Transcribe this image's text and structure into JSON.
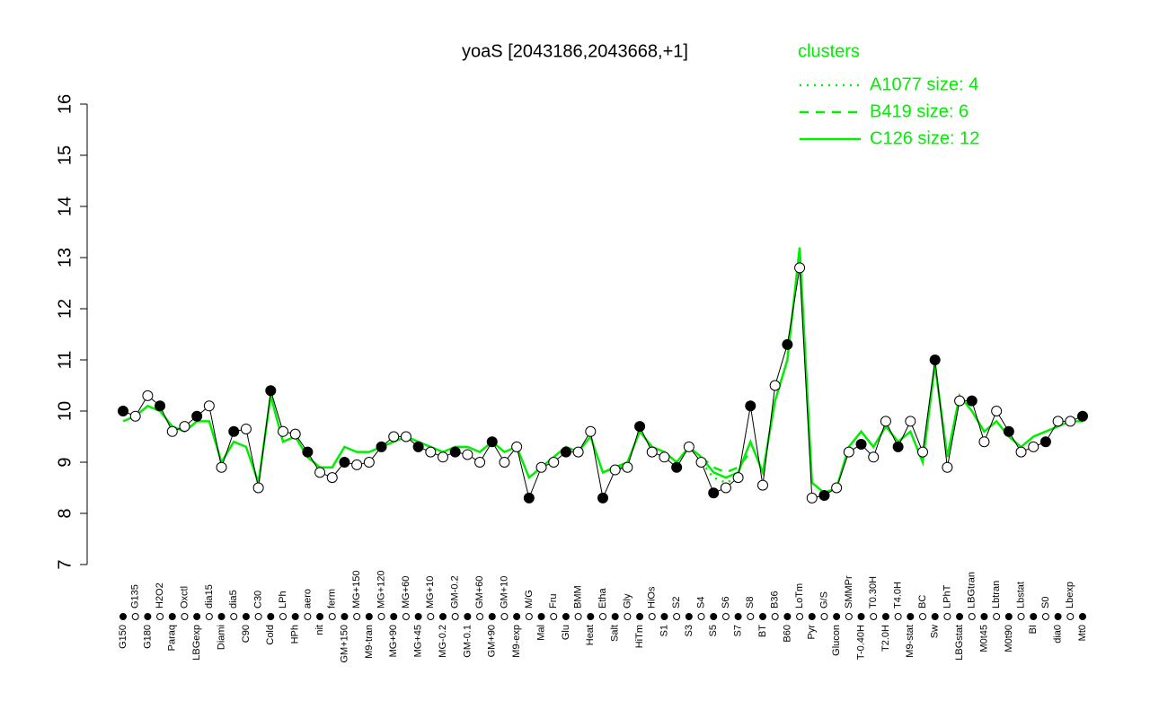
{
  "chart_data": {
    "type": "line",
    "title": "yoaS [2043186,2043668,+1]",
    "categories": [
      "G150",
      "G135",
      "G180",
      "H2O2",
      "Paraq",
      "Oxctl",
      "LBGexp",
      "dia15",
      "Diami",
      "dia5",
      "C90",
      "C30",
      "Cold",
      "LPh",
      "HPh",
      "aero",
      "nit",
      "ferm",
      "GM+150",
      "MG+150",
      "M9-tran",
      "MG+120",
      "MG+90",
      "MG+60",
      "MG+45",
      "MG+10",
      "MG-0.2",
      "GM-0.2",
      "GM-0.1",
      "GM+60",
      "GM+90",
      "GM+10",
      "M9-exp",
      "M/G",
      "Mal",
      "Fru",
      "Glu",
      "BMM",
      "Heat",
      "Etha",
      "Salt",
      "Gly",
      "HiTm",
      "HiOs",
      "S1",
      "S2",
      "S3",
      "S4",
      "S5",
      "S6",
      "S7",
      "S8",
      "BT",
      "B36",
      "B60",
      "LoTm",
      "Pyr",
      "G/S",
      "Glucon",
      "SMMPr",
      "T-0.40H",
      "T0.30H",
      "T2.0H",
      "T4.0H",
      "M9-stat",
      "BC",
      "Sw",
      "LPhT",
      "LBGstat",
      "LBGtran",
      "M0t45",
      "Lbtran",
      "M0t90",
      "Lbstat",
      "BI",
      "S0",
      "dia0",
      "Lbexp",
      "Mt0"
    ],
    "values": [
      10.0,
      9.9,
      10.3,
      10.1,
      9.6,
      9.7,
      9.9,
      10.1,
      8.9,
      9.6,
      9.65,
      8.5,
      10.4,
      9.6,
      9.55,
      9.2,
      8.8,
      8.7,
      9.0,
      8.95,
      9.0,
      9.3,
      9.5,
      9.5,
      9.3,
      9.2,
      9.1,
      9.2,
      9.15,
      9.0,
      9.4,
      9.0,
      9.3,
      8.3,
      8.9,
      9.0,
      9.2,
      9.2,
      9.6,
      8.3,
      8.85,
      8.9,
      9.7,
      9.2,
      9.1,
      8.9,
      9.3,
      9.0,
      8.4,
      8.5,
      8.7,
      10.1,
      8.55,
      10.5,
      11.3,
      12.8,
      8.3,
      8.35,
      8.5,
      9.2,
      9.35,
      9.1,
      9.8,
      9.3,
      9.8,
      9.2,
      11.0,
      8.9,
      10.2,
      10.2,
      9.4,
      10.0,
      9.6,
      9.2,
      9.3,
      9.4,
      9.8,
      9.8,
      9.9
    ],
    "series": [
      {
        "name": "A1077 size: 4",
        "color": "#00ee00",
        "dash": "dotted",
        "values": [
          null,
          null,
          null,
          null,
          null,
          null,
          null,
          null,
          null,
          null,
          null,
          null,
          null,
          null,
          null,
          null,
          null,
          null,
          null,
          null,
          null,
          null,
          null,
          null,
          null,
          null,
          null,
          null,
          null,
          null,
          null,
          null,
          null,
          null,
          null,
          null,
          null,
          null,
          null,
          null,
          null,
          null,
          null,
          null,
          null,
          null,
          null,
          9.0,
          8.7,
          8.6,
          8.7,
          null,
          null,
          null,
          null,
          null,
          null,
          null,
          null,
          null,
          null,
          null,
          null,
          null,
          null,
          null,
          null,
          null,
          null,
          null,
          null,
          null,
          null,
          null,
          null,
          null,
          null,
          null,
          null
        ]
      },
      {
        "name": "B419 size: 6",
        "color": "#00ee00",
        "dash": "dashed",
        "values": [
          null,
          null,
          null,
          null,
          null,
          null,
          null,
          null,
          null,
          null,
          null,
          null,
          null,
          null,
          null,
          null,
          null,
          null,
          null,
          null,
          null,
          null,
          null,
          null,
          null,
          null,
          null,
          null,
          null,
          null,
          null,
          null,
          null,
          null,
          null,
          null,
          null,
          null,
          null,
          8.8,
          8.9,
          8.9,
          null,
          null,
          null,
          null,
          null,
          9.1,
          8.9,
          8.8,
          8.9,
          9.2,
          null,
          null,
          null,
          null,
          null,
          null,
          null,
          null,
          null,
          null,
          null,
          null,
          null,
          null,
          null,
          null,
          null,
          null,
          null,
          null,
          null,
          null,
          null,
          null,
          null,
          null,
          null
        ]
      },
      {
        "name": "C126 size: 12",
        "color": "#00ee00",
        "dash": "solid",
        "values": [
          9.8,
          9.9,
          10.1,
          10.0,
          9.7,
          9.6,
          9.8,
          9.8,
          9.0,
          9.4,
          9.3,
          8.6,
          10.3,
          9.4,
          9.5,
          9.1,
          8.9,
          8.9,
          9.3,
          9.2,
          9.2,
          9.3,
          9.4,
          9.5,
          9.4,
          9.3,
          9.2,
          9.3,
          9.3,
          9.2,
          9.4,
          9.2,
          9.3,
          8.7,
          8.9,
          9.1,
          9.3,
          9.2,
          9.5,
          8.8,
          8.9,
          9.0,
          9.6,
          9.3,
          9.2,
          9.0,
          9.3,
          9.1,
          8.8,
          8.7,
          8.8,
          9.4,
          8.8,
          10.2,
          11.0,
          13.2,
          8.6,
          8.4,
          8.5,
          9.3,
          9.6,
          9.3,
          9.7,
          9.4,
          9.6,
          9.0,
          10.9,
          9.1,
          10.3,
          10.0,
          9.6,
          9.8,
          9.5,
          9.3,
          9.5,
          9.6,
          9.7,
          9.8,
          9.8
        ]
      }
    ],
    "legend_title": "clusters",
    "ylim": [
      7,
      16
    ],
    "yticks": [
      7,
      8,
      9,
      10,
      11,
      12,
      13,
      14,
      15,
      16
    ]
  }
}
